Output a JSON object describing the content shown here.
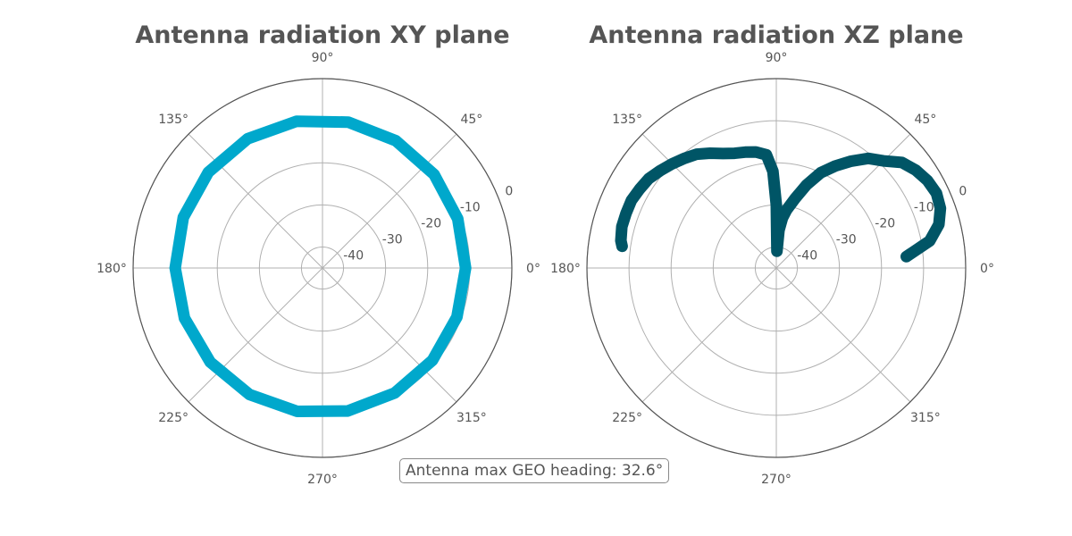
{
  "annotation": "Antenna max GEO heading: 32.6°",
  "chart_data": [
    {
      "type": "line",
      "projection": "polar",
      "title": "Antenna radiation XY plane",
      "theta_tick_labels": [
        "0°",
        "45°",
        "90°",
        "135°",
        "180°",
        "225°",
        "270°",
        "315°"
      ],
      "r_tick_labels": [
        "-40",
        "-30",
        "-20",
        "-10",
        "0"
      ],
      "rlim": [
        -45,
        0
      ],
      "grid": true,
      "series": [
        {
          "color": "#00a8cc",
          "theta_deg": [
            0,
            20,
            40,
            60,
            80,
            100,
            120,
            140,
            160,
            180,
            200,
            220,
            240,
            260,
            280,
            300,
            320,
            340
          ],
          "r": [
            -11,
            -10.8,
            -10.4,
            -10.1,
            -9.8,
            -9.6,
            -9.5,
            -9.6,
            -9.8,
            -10,
            -10.1,
            -10.2,
            -10.3,
            -10.4,
            -10.5,
            -10.7,
            -10.9,
            -11
          ]
        }
      ]
    },
    {
      "type": "line",
      "projection": "polar",
      "title": "Antenna radiation XZ plane",
      "theta_tick_labels": [
        "0°",
        "45°",
        "90°",
        "135°",
        "180°",
        "225°",
        "270°",
        "315°"
      ],
      "r_tick_labels": [
        "-40",
        "-30",
        "-20",
        "-10",
        "0"
      ],
      "rlim": [
        -45,
        0
      ],
      "grid": true,
      "series": [
        {
          "color": "#005566",
          "theta_deg": [
            5,
            10,
            15,
            20,
            25,
            30,
            35,
            40,
            45,
            50,
            55,
            60,
            65,
            70,
            75,
            80,
            83,
            86,
            88,
            90,
            92,
            95,
            100,
            105,
            110,
            115,
            120,
            125,
            130,
            135,
            140,
            145,
            150,
            155,
            160,
            165,
            170,
            172
          ],
          "r": [
            -14,
            -8,
            -5,
            -3.5,
            -3,
            -3.5,
            -4.5,
            -6,
            -9,
            -11,
            -14,
            -17,
            -20,
            -24,
            -28,
            -31,
            -33,
            -36,
            -41,
            -30,
            -22,
            -18,
            -17,
            -16.5,
            -16,
            -15,
            -13.5,
            -12,
            -11,
            -10,
            -9,
            -8,
            -7.5,
            -7,
            -7,
            -7,
            -7.5,
            -8
          ]
        }
      ]
    }
  ]
}
